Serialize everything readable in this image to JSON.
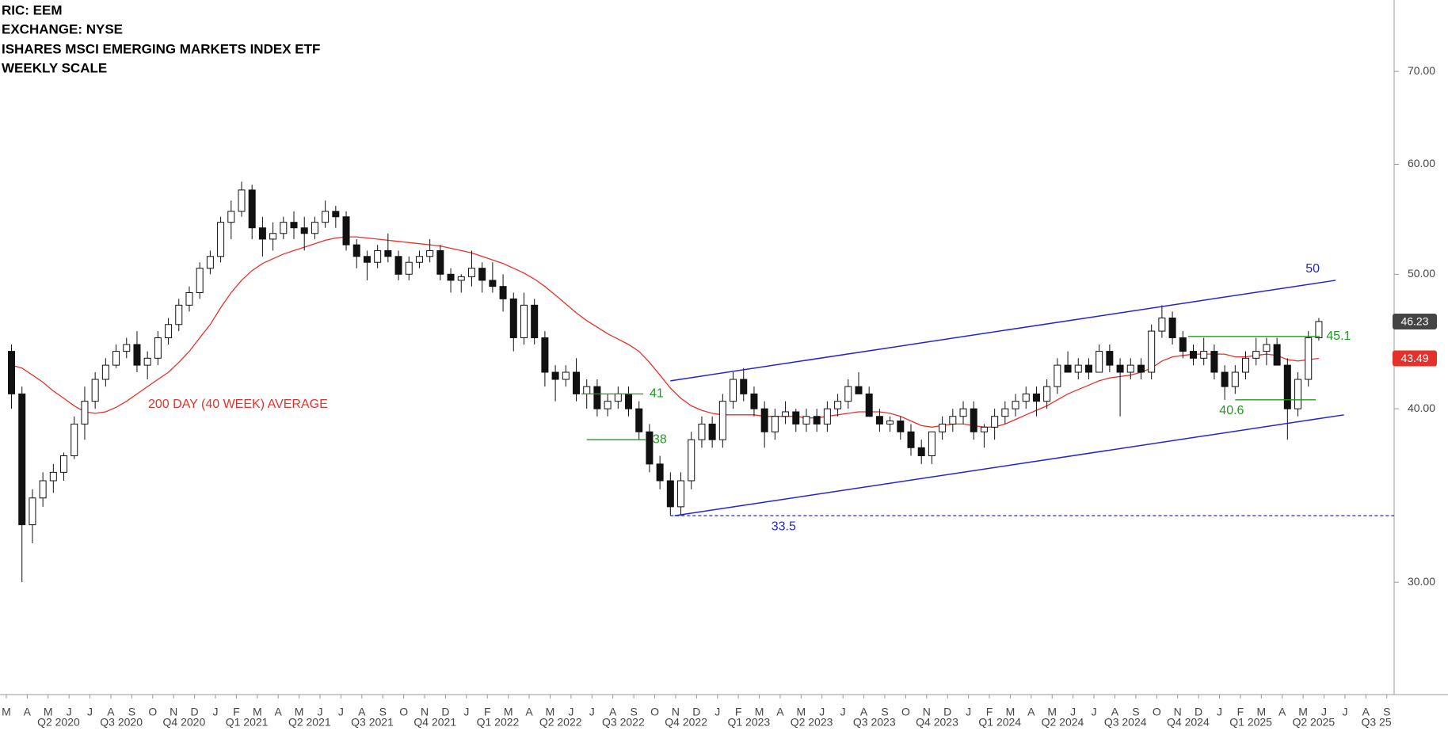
{
  "chart_data": {
    "type": "candlestick",
    "header": [
      "RIC: EEM",
      "EXCHANGE: NYSE",
      "ISHARES MSCI EMERGING MARKETS INDEX ETF",
      "WEEKLY SCALE"
    ],
    "log_scale": true,
    "ylim": [
      24.9,
      78.8
    ],
    "yticks": [
      {
        "value": 30,
        "label": "30.00"
      },
      {
        "value": 40,
        "label": "40.00"
      },
      {
        "value": 50,
        "label": "50.00"
      },
      {
        "value": 60,
        "label": "60.00"
      },
      {
        "value": 70,
        "label": "70.00"
      }
    ],
    "xlim": [
      -1.1,
      132.2
    ],
    "xticks": [
      {
        "value": -0.5,
        "label": "M"
      },
      {
        "value": 1.5,
        "label": "A"
      },
      {
        "value": 3.5,
        "label": "M"
      },
      {
        "value": 5.5,
        "label": "J"
      },
      {
        "value": 7.5,
        "label": "J"
      },
      {
        "value": 9.5,
        "label": "A"
      },
      {
        "value": 11.5,
        "label": "S"
      },
      {
        "value": 13.5,
        "label": "O"
      },
      {
        "value": 15.5,
        "label": "N"
      },
      {
        "value": 17.5,
        "label": "D"
      },
      {
        "value": 19.5,
        "label": "J"
      },
      {
        "value": 21.5,
        "label": "F"
      },
      {
        "value": 23.5,
        "label": "M"
      },
      {
        "value": 25.5,
        "label": "A"
      },
      {
        "value": 27.5,
        "label": "M"
      },
      {
        "value": 29.5,
        "label": "J"
      },
      {
        "value": 31.5,
        "label": "J"
      },
      {
        "value": 33.5,
        "label": "A"
      },
      {
        "value": 35.5,
        "label": "S"
      },
      {
        "value": 37.5,
        "label": "O"
      },
      {
        "value": 39.5,
        "label": "N"
      },
      {
        "value": 41.5,
        "label": "D"
      },
      {
        "value": 43.5,
        "label": "J"
      },
      {
        "value": 45.5,
        "label": "F"
      },
      {
        "value": 47.5,
        "label": "M"
      },
      {
        "value": 49.5,
        "label": "A"
      },
      {
        "value": 51.5,
        "label": "M"
      },
      {
        "value": 53.5,
        "label": "J"
      },
      {
        "value": 55.5,
        "label": "J"
      },
      {
        "value": 57.5,
        "label": "A"
      },
      {
        "value": 59.5,
        "label": "S"
      },
      {
        "value": 61.5,
        "label": "O"
      },
      {
        "value": 63.5,
        "label": "N"
      },
      {
        "value": 65.5,
        "label": "D"
      },
      {
        "value": 67.5,
        "label": "J"
      },
      {
        "value": 69.5,
        "label": "F"
      },
      {
        "value": 71.5,
        "label": "M"
      },
      {
        "value": 73.5,
        "label": "A"
      },
      {
        "value": 75.5,
        "label": "M"
      },
      {
        "value": 77.5,
        "label": "J"
      },
      {
        "value": 79.5,
        "label": "J"
      },
      {
        "value": 81.5,
        "label": "A"
      },
      {
        "value": 83.5,
        "label": "S"
      },
      {
        "value": 85.5,
        "label": "O"
      },
      {
        "value": 87.5,
        "label": "N"
      },
      {
        "value": 89.5,
        "label": "D"
      },
      {
        "value": 91.5,
        "label": "J"
      },
      {
        "value": 93.5,
        "label": "F"
      },
      {
        "value": 95.5,
        "label": "M"
      },
      {
        "value": 97.5,
        "label": "A"
      },
      {
        "value": 99.5,
        "label": "M"
      },
      {
        "value": 101.5,
        "label": "J"
      },
      {
        "value": 103.5,
        "label": "J"
      },
      {
        "value": 105.5,
        "label": "A"
      },
      {
        "value": 107.5,
        "label": "S"
      },
      {
        "value": 109.5,
        "label": "O"
      },
      {
        "value": 111.5,
        "label": "N"
      },
      {
        "value": 113.5,
        "label": "D"
      },
      {
        "value": 115.5,
        "label": "J"
      },
      {
        "value": 117.5,
        "label": "F"
      },
      {
        "value": 119.5,
        "label": "M"
      },
      {
        "value": 121.5,
        "label": "A"
      },
      {
        "value": 123.5,
        "label": "M"
      },
      {
        "value": 125.5,
        "label": "J"
      },
      {
        "value": 127.5,
        "label": "J"
      },
      {
        "value": 129.5,
        "label": "A"
      },
      {
        "value": 131.5,
        "label": "S"
      }
    ],
    "quarter_ticks": [
      {
        "value": 4.5,
        "label": "Q2 2020"
      },
      {
        "value": 10.5,
        "label": "Q3 2020"
      },
      {
        "value": 16.5,
        "label": "Q4 2020"
      },
      {
        "value": 22.5,
        "label": "Q1 2021"
      },
      {
        "value": 28.5,
        "label": "Q2 2021"
      },
      {
        "value": 34.5,
        "label": "Q3 2021"
      },
      {
        "value": 40.5,
        "label": "Q4 2021"
      },
      {
        "value": 46.5,
        "label": "Q1 2022"
      },
      {
        "value": 52.5,
        "label": "Q2 2022"
      },
      {
        "value": 58.5,
        "label": "Q3 2022"
      },
      {
        "value": 64.5,
        "label": "Q4 2022"
      },
      {
        "value": 70.5,
        "label": "Q1 2023"
      },
      {
        "value": 76.5,
        "label": "Q2 2023"
      },
      {
        "value": 82.5,
        "label": "Q3 2023"
      },
      {
        "value": 88.5,
        "label": "Q4 2023"
      },
      {
        "value": 94.5,
        "label": "Q1 2024"
      },
      {
        "value": 100.5,
        "label": "Q2 2024"
      },
      {
        "value": 106.5,
        "label": "Q3 2024"
      },
      {
        "value": 112.5,
        "label": "Q4 2024"
      },
      {
        "value": 118.5,
        "label": "Q1 2025"
      },
      {
        "value": 124.5,
        "label": "Q2 2025"
      },
      {
        "value": 130.5,
        "label": "Q3 25"
      }
    ],
    "up_color": "#ffffff",
    "down_color": "#111111",
    "open": [
      44,
      41,
      33,
      34.5,
      35.5,
      36,
      37,
      39,
      40.5,
      42,
      43,
      44,
      44.5,
      43,
      43.5,
      45,
      46,
      47.5,
      48.5,
      50.5,
      51.5,
      54.5,
      55.5,
      57.5,
      54,
      53,
      53.5,
      54.5,
      54,
      53.5,
      54.5,
      55.5,
      55,
      52.5,
      51.5,
      51,
      52,
      51.5,
      50,
      51,
      51.5,
      52,
      50,
      49.5,
      49.8,
      50.5,
      49.5,
      49,
      48,
      45,
      47.5,
      45,
      42.5,
      42,
      42.5,
      41,
      41.5,
      40,
      40.5,
      41,
      40,
      38.5,
      36.5,
      35.5,
      34,
      35.5,
      38,
      39,
      38,
      40.5,
      42,
      41,
      40,
      38.5,
      39.5,
      39.8,
      39,
      39.5,
      39,
      40,
      40.5,
      41.5,
      41,
      39.5,
      39,
      39.2,
      38.5,
      37.5,
      37,
      38.5,
      39,
      39.5,
      40,
      38.5,
      38.8,
      39.5,
      40,
      40.5,
      41,
      40.5,
      41.5,
      43,
      42.5,
      43,
      42.5,
      44,
      43,
      42.5,
      43,
      42.5,
      45.5,
      46.5,
      45,
      44,
      43.5,
      44,
      42.5,
      41.5,
      42.5,
      43.5,
      44,
      44.5,
      43,
      40,
      42,
      45
    ],
    "high": [
      44.5,
      41.5,
      35,
      36,
      36.5,
      37.2,
      39.5,
      41.5,
      42.5,
      43.5,
      44.5,
      45,
      45.5,
      44,
      45.5,
      46.5,
      48,
      49,
      51,
      52,
      55,
      56.5,
      58.3,
      58,
      55,
      54.5,
      55,
      55.5,
      55,
      55,
      56.5,
      56,
      55.5,
      53,
      52,
      52.5,
      53.5,
      52,
      51.5,
      52,
      53,
      52.5,
      50.5,
      50,
      52,
      51,
      51,
      50,
      48.5,
      48.5,
      48,
      45.5,
      43,
      43,
      43.5,
      42,
      42,
      41,
      41.5,
      41.5,
      40.5,
      39,
      37,
      36,
      36,
      38.5,
      39.5,
      39.5,
      41,
      42.5,
      42.8,
      41.5,
      40.5,
      40,
      40.5,
      40,
      40,
      40,
      40.5,
      41,
      42,
      42.5,
      41.5,
      40,
      39.5,
      39.5,
      39,
      38,
      38.5,
      39.5,
      40,
      40.5,
      40.5,
      39,
      40,
      40.5,
      41,
      41.5,
      41.5,
      42,
      43.5,
      44,
      43.5,
      43.5,
      44.5,
      44.5,
      43.5,
      43.5,
      43.5,
      46,
      47.5,
      47,
      45.5,
      44.5,
      45,
      44.5,
      43,
      43,
      44,
      45,
      45,
      45,
      43.5,
      42.5,
      45.5,
      46.5
    ],
    "low": [
      40,
      30,
      32,
      34,
      34.8,
      35.5,
      36.8,
      38,
      40,
      41.5,
      42.8,
      43.5,
      42.5,
      42,
      43,
      44.5,
      45.5,
      47,
      48,
      50,
      51,
      53,
      55,
      53,
      51.5,
      52,
      53,
      53,
      52,
      53,
      54,
      54,
      52,
      50.5,
      49.5,
      50.5,
      51,
      49.5,
      49.5,
      50.5,
      51,
      49.5,
      48.5,
      48.5,
      49,
      48.5,
      48.5,
      47,
      44,
      44.5,
      44.5,
      41.5,
      40.5,
      41.5,
      40.5,
      40,
      39.5,
      39.5,
      40,
      39.5,
      38,
      36,
      35,
      33.5,
      33.5,
      35,
      37.5,
      37.5,
      37.5,
      40,
      40.5,
      39.5,
      37.5,
      38,
      39,
      38.5,
      38.5,
      38.5,
      38.5,
      39.5,
      40,
      41,
      39.5,
      38.5,
      38.5,
      38,
      37,
      36.5,
      36.5,
      38,
      38.5,
      39,
      38,
      37.5,
      38,
      39,
      39.5,
      40,
      39.5,
      40,
      41,
      42.5,
      42,
      42,
      42.5,
      42.5,
      39.5,
      42,
      42,
      42,
      45,
      44.5,
      43.5,
      43,
      43,
      42,
      40.6,
      41,
      42,
      43,
      43,
      43,
      38,
      39.5,
      41.5,
      44.8
    ],
    "close": [
      41,
      33,
      34.5,
      35.5,
      36,
      37,
      39,
      40.5,
      42,
      43,
      44,
      44.5,
      43,
      43.5,
      45,
      46,
      47.5,
      48.5,
      50.5,
      51.5,
      54.5,
      55.5,
      57.5,
      54,
      53,
      53.5,
      54.5,
      54,
      53.5,
      54.5,
      55.5,
      55,
      52.5,
      51.5,
      51,
      52,
      51.5,
      50,
      51,
      51.5,
      52,
      50,
      49.5,
      49.8,
      50.5,
      49.5,
      49,
      48,
      45,
      47.5,
      45,
      42.5,
      42,
      42.5,
      41,
      41.5,
      40,
      40.5,
      41,
      40,
      38.5,
      36.5,
      35.5,
      34,
      35.5,
      38,
      39,
      38,
      40.5,
      42,
      41,
      40,
      38.5,
      39.5,
      39.8,
      39,
      39.5,
      39,
      40,
      40.5,
      41.5,
      41,
      39.5,
      39,
      39.2,
      38.5,
      37.5,
      37,
      38.5,
      39,
      39.5,
      40,
      38.5,
      38.8,
      39.5,
      40,
      40.5,
      41,
      40.5,
      41.5,
      43,
      42.5,
      43,
      42.5,
      44,
      43,
      42.5,
      43,
      42.5,
      45.5,
      46.5,
      45,
      44,
      43.5,
      44,
      42.5,
      41.5,
      42.5,
      43.5,
      44,
      44.5,
      43,
      40,
      42,
      45,
      46.23
    ],
    "moving_average": {
      "name": "200 DAY (40 WEEK) AVERAGE",
      "color": "#e8302a",
      "values": [
        43,
        42.8,
        42.3,
        41.8,
        41.2,
        40.7,
        40.2,
        39.8,
        39.7,
        39.8,
        40.1,
        40.5,
        41,
        41.5,
        42,
        42.5,
        43.2,
        44,
        45,
        46,
        47.3,
        48.5,
        49.5,
        50.3,
        50.9,
        51.3,
        51.7,
        52,
        52.3,
        52.6,
        52.9,
        53.1,
        53.2,
        53.2,
        53.1,
        53,
        52.9,
        52.8,
        52.7,
        52.6,
        52.5,
        52.4,
        52.2,
        52,
        51.8,
        51.5,
        51.2,
        50.9,
        50.5,
        50.1,
        49.6,
        49,
        48.3,
        47.6,
        46.9,
        46.3,
        45.8,
        45.3,
        44.9,
        44.5,
        44,
        43.2,
        42.3,
        41.4,
        40.7,
        40.2,
        39.9,
        39.7,
        39.6,
        39.6,
        39.6,
        39.6,
        39.5,
        39.5,
        39.5,
        39.5,
        39.4,
        39.4,
        39.5,
        39.6,
        39.7,
        39.8,
        39.8,
        39.8,
        39.7,
        39.5,
        39.2,
        38.9,
        38.8,
        38.9,
        39,
        39,
        38.9,
        38.8,
        38.8,
        39,
        39.3,
        39.6,
        39.9,
        40.2,
        40.6,
        41,
        41.3,
        41.6,
        41.9,
        42.1,
        42.2,
        42.3,
        42.5,
        42.8,
        43.3,
        43.6,
        43.7,
        43.8,
        43.8,
        43.8,
        43.8,
        43.6,
        43.6,
        43.7,
        43.8,
        43.7,
        43.4,
        43.3,
        43.4,
        43.49
      ]
    },
    "trendlines": [
      {
        "start": [
          63,
          41.9
        ],
        "end": [
          126.6,
          49.5
        ],
        "label": 50,
        "color": "#2323d6"
      },
      {
        "start": [
          63.4,
          33.5
        ],
        "end": [
          127.4,
          39.6
        ],
        "color": "#2323d6"
      }
    ],
    "levels": [
      {
        "value": 41,
        "span": [
          54.5,
          60.4
        ],
        "color": "#229922"
      },
      {
        "value": 38,
        "span": [
          55,
          60.7
        ],
        "color": "#229922"
      },
      {
        "value": 45.1,
        "span": [
          112.5,
          125.1
        ],
        "color": "#229922"
      },
      {
        "value": 40.6,
        "span": [
          117,
          124.7
        ],
        "color": "#229922"
      },
      {
        "value": 33.5,
        "span": [
          63,
          132.2
        ],
        "color": "#2323d6",
        "dashed": true
      }
    ]
  }
}
